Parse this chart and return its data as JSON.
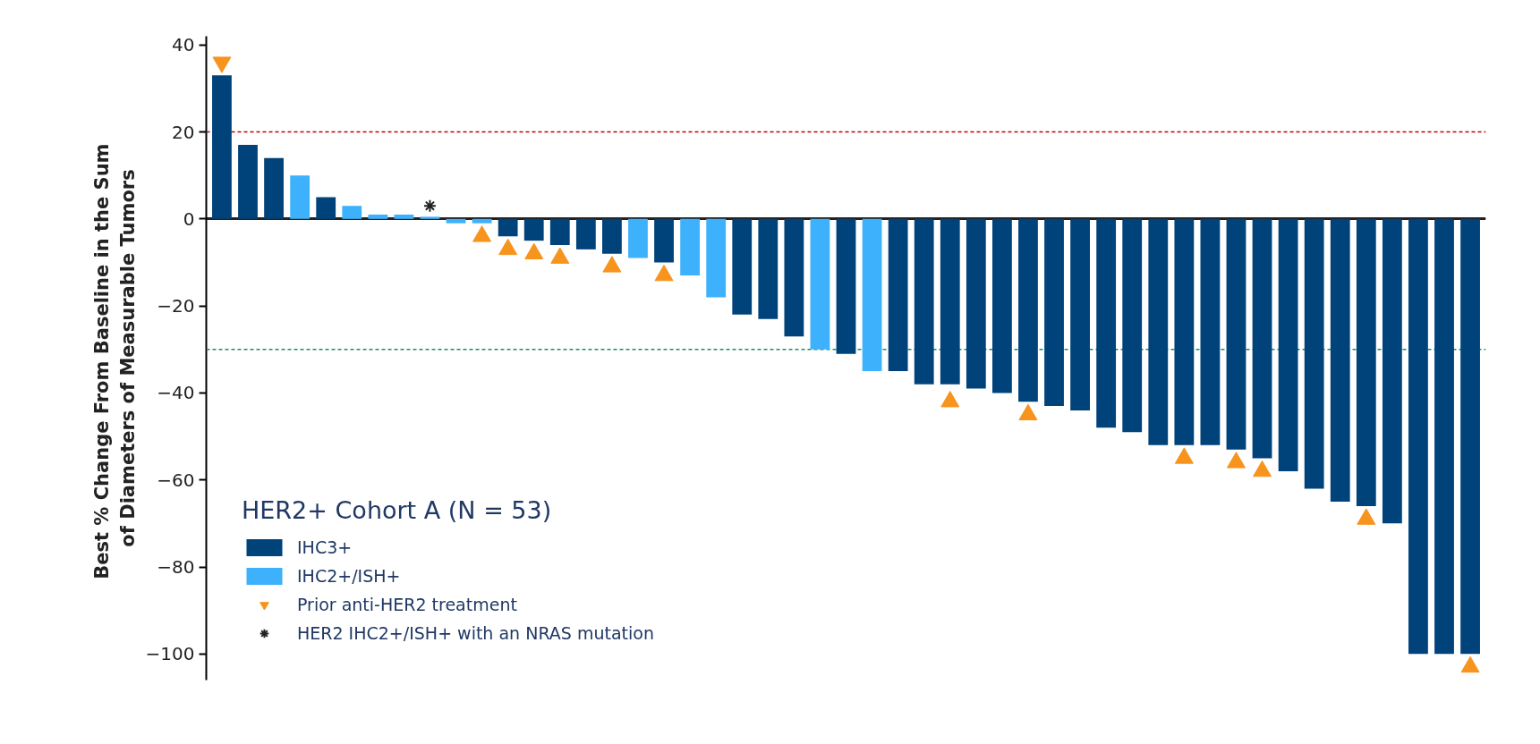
{
  "chart_data": {
    "type": "bar",
    "ylabel": "Best % Change From Baseline in the  Sum\nof Diameters of Measurable Tumors",
    "legend_title": "HER2+ Cohort A (N = 53)",
    "legend": "bottom left",
    "tick_labels": "y",
    "grid": false,
    "categories": [
      null,
      null,
      null,
      null,
      null,
      null,
      null,
      null,
      null,
      null,
      null,
      null,
      null,
      null,
      null,
      null,
      null,
      null,
      null,
      null,
      null,
      null,
      null,
      null,
      null,
      null,
      null,
      null,
      null,
      null,
      null,
      null,
      null,
      null,
      null,
      null,
      null,
      null,
      null,
      null,
      null,
      null,
      null,
      null,
      null,
      null,
      null,
      null,
      null
    ],
    "ylim": [
      -106,
      42
    ],
    "yticks": [
      -100,
      -80,
      -60,
      -40,
      -20,
      0,
      20,
      40
    ],
    "series": [
      {
        "name": "IHC3+",
        "color": "#00427a",
        "values": [
          33,
          17,
          14,
          null,
          5,
          null,
          null,
          null,
          null,
          null,
          null,
          -4,
          -5,
          -6,
          -7,
          -8,
          null,
          -10,
          null,
          null,
          -22,
          -23,
          -27,
          null,
          -31,
          null,
          -35,
          -38,
          -38,
          -39,
          -40,
          -42,
          -43,
          -44,
          -48,
          -49,
          -52,
          -52,
          -52,
          -53,
          -55,
          -58,
          -62,
          -65,
          -66,
          -70,
          -100,
          -100,
          -100
        ]
      },
      {
        "name": "IHC2+/ISH+",
        "color": "#3eb1fd",
        "values": [
          null,
          null,
          null,
          10,
          null,
          3,
          1,
          1,
          0.5,
          -1,
          -1,
          null,
          null,
          null,
          null,
          null,
          -9,
          null,
          -13,
          -18,
          null,
          null,
          null,
          -30,
          null,
          -35,
          null,
          null,
          null,
          null,
          null,
          null,
          null,
          null,
          null,
          null,
          null,
          null,
          null,
          null,
          null,
          null,
          null,
          null,
          null,
          null,
          null,
          null,
          null
        ]
      },
      {
        "name": "Prior anti-HER2 treatment",
        "type": "scatter",
        "marker": "triangle",
        "color": "#f7941d",
        "values": [
          36,
          null,
          null,
          null,
          null,
          null,
          null,
          null,
          null,
          null,
          -4,
          -7,
          -8,
          -9,
          null,
          -11,
          null,
          -13,
          null,
          null,
          null,
          null,
          null,
          null,
          null,
          null,
          null,
          null,
          -42,
          null,
          null,
          -45,
          null,
          null,
          null,
          null,
          null,
          -55,
          null,
          -56,
          -58,
          null,
          null,
          null,
          -69,
          null,
          null,
          null,
          -103
        ]
      },
      {
        "name": "HER2 IHC2+/ISH+ with an NRAS mutation",
        "type": "scatter",
        "marker": "cross",
        "color": "#222222",
        "values": [
          null,
          null,
          null,
          null,
          null,
          null,
          null,
          null,
          3,
          null,
          null,
          null,
          null,
          null,
          null,
          null,
          null,
          null,
          null,
          null,
          null,
          null,
          null,
          null,
          null,
          null,
          null,
          null,
          null,
          null,
          null,
          null,
          null,
          null,
          null,
          null,
          null,
          null,
          null,
          null,
          null,
          null,
          null,
          null,
          null,
          null,
          null,
          null,
          null
        ]
      }
    ],
    "ref_lines": [
      {
        "axis": "y",
        "value": 20,
        "color": "#c00000",
        "line_style": "dashed"
      },
      {
        "axis": "y",
        "value": -30,
        "color": "#1a8a6a",
        "line_style": "dashed"
      }
    ]
  }
}
